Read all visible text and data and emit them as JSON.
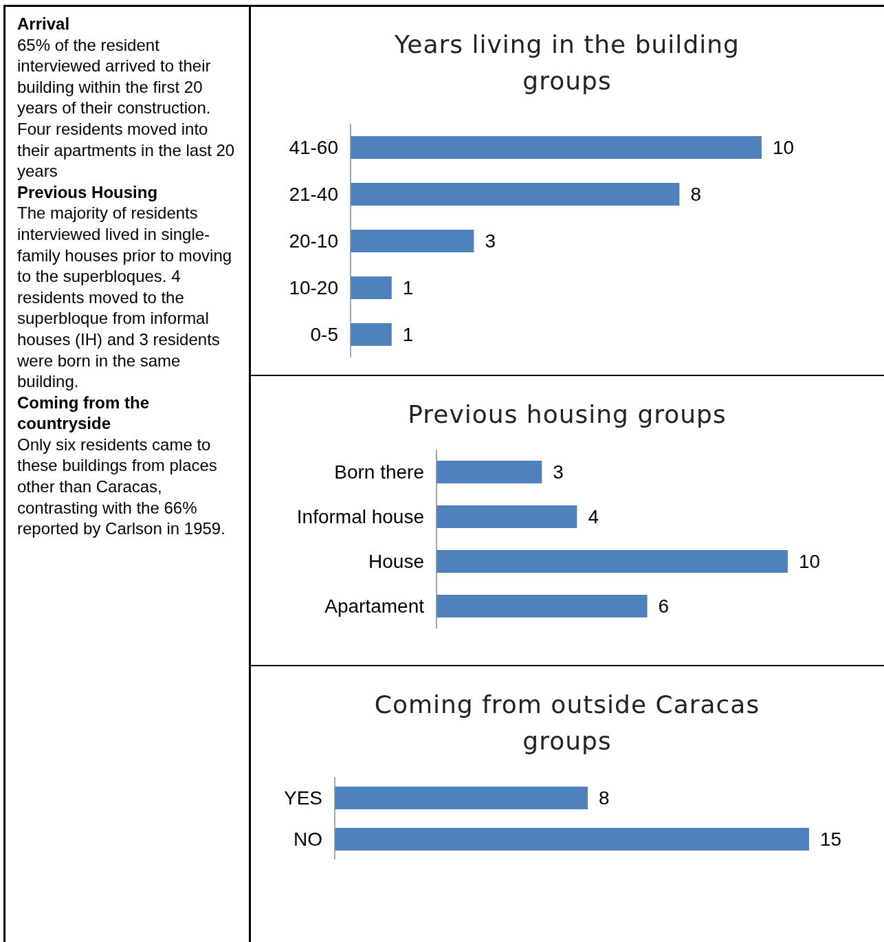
{
  "chart_data": [
    {
      "type": "other",
      "annotations": [
        "Arrival",
        "65% of the resident interviewed arrived to their building within the first 20 years of their construction. Four residents moved into their apartments in the last 20 years",
        "Previous Housing",
        "The majority of residents interviewed lived in single-family houses prior to moving to the superbloques. 4 residents moved to the superbloque from informal houses (IH) and 3 residents were born in the same building.",
        "Coming from the countryside",
        "Only six residents came to these buildings from places other than Caracas, contrasting with the 66% reported by Carlson in 1959."
      ]
    },
    {
      "type": "bar",
      "orientation": "horizontal",
      "title": "Years living in the building groups",
      "categories": [
        "41-60",
        "21-40",
        "20-10",
        "10-20",
        "0-5"
      ],
      "values": [
        10,
        8,
        3,
        1,
        1
      ],
      "color": "#4f81bd",
      "data_labels": true
    },
    {
      "type": "bar",
      "orientation": "horizontal",
      "title": "Previous housing groups",
      "categories": [
        "Born there",
        "Informal house",
        "House",
        "Apartament"
      ],
      "values": [
        3,
        4,
        10,
        6
      ],
      "color": "#4f81bd",
      "data_labels": true
    },
    {
      "type": "bar",
      "orientation": "horizontal",
      "title": "Coming from outside Caracas groups",
      "categories": [
        "YES",
        "NO"
      ],
      "values": [
        8,
        15
      ],
      "color": "#4f81bd",
      "data_labels": true
    }
  ]
}
